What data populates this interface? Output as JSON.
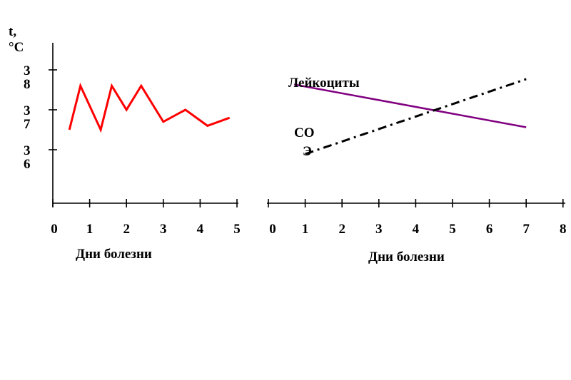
{
  "chart_data": [
    {
      "type": "line",
      "ylabel_line1": "t,",
      "ylabel_line2": "°C",
      "y_tick_labels": [
        {
          "value": 38,
          "digits": [
            "3",
            "8"
          ]
        },
        {
          "value": 37,
          "digits": [
            "3",
            "7"
          ]
        },
        {
          "value": 36,
          "digits": [
            "3",
            "6"
          ]
        }
      ],
      "xlabel": "Дни болезни",
      "x_ticks": [
        "0",
        "1",
        "2",
        "3",
        "4",
        "5"
      ],
      "xlim": [
        0,
        5
      ],
      "series": [
        {
          "color": "#ff0000",
          "points": [
            {
              "x": 0.45,
              "y": 36.5
            },
            {
              "x": 0.75,
              "y": 37.6
            },
            {
              "x": 1.3,
              "y": 36.5
            },
            {
              "x": 1.6,
              "y": 37.6
            },
            {
              "x": 2.0,
              "y": 37.0
            },
            {
              "x": 2.4,
              "y": 37.6
            },
            {
              "x": 3.0,
              "y": 36.7
            },
            {
              "x": 3.6,
              "y": 37.0
            },
            {
              "x": 4.2,
              "y": 36.6
            },
            {
              "x": 4.8,
              "y": 36.8
            }
          ]
        }
      ]
    },
    {
      "type": "line",
      "xlabel": "Дни болезни",
      "x_ticks": [
        "0",
        "1",
        "2",
        "3",
        "4",
        "5",
        "6",
        "7",
        "8"
      ],
      "xlim": [
        0,
        8
      ],
      "series": [
        {
          "name": "Лейкоциты",
          "color": "#800080",
          "style": "solid",
          "points": [
            {
              "x": 0.7,
              "y": 0.85
            },
            {
              "x": 7.0,
              "y": 0.45
            }
          ]
        },
        {
          "name_line1": "СО",
          "name_line2": "Э",
          "color": "#000000",
          "style": "dash-dot",
          "points": [
            {
              "x": 1.0,
              "y": 0.2
            },
            {
              "x": 7.0,
              "y": 0.9
            }
          ]
        }
      ]
    }
  ]
}
